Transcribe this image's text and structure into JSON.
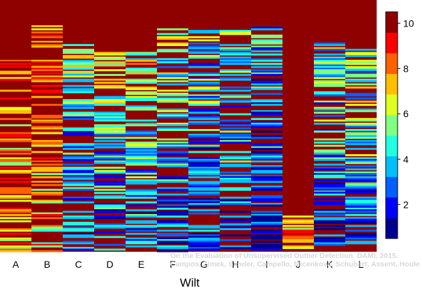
{
  "chart_data": {
    "type": "heatmap",
    "xlabel": "Wilt",
    "categories": [
      "A",
      "B",
      "C",
      "D",
      "E",
      "F",
      "G",
      "H",
      "I",
      "J",
      "K",
      "L"
    ],
    "colorbar": {
      "min": 0.5,
      "max": 10.5,
      "ticks": [
        2,
        4,
        6,
        8,
        10
      ]
    },
    "colors": [
      "#00008f",
      "#0000ff",
      "#0060ff",
      "#00bfff",
      "#20ffdf",
      "#80ff80",
      "#dfff20",
      "#ffbf00",
      "#ff6000",
      "#ff0000",
      "#8f0000"
    ],
    "grid": false,
    "legend": "colorbar-right",
    "watermark": [
      "On the Evaluation of Unsupervised Outlier Detection. DAMI, 2015.",
      "Campos, Zimek, Sander, Campello, Micenková, Schubert, Assent, Houle"
    ]
  }
}
